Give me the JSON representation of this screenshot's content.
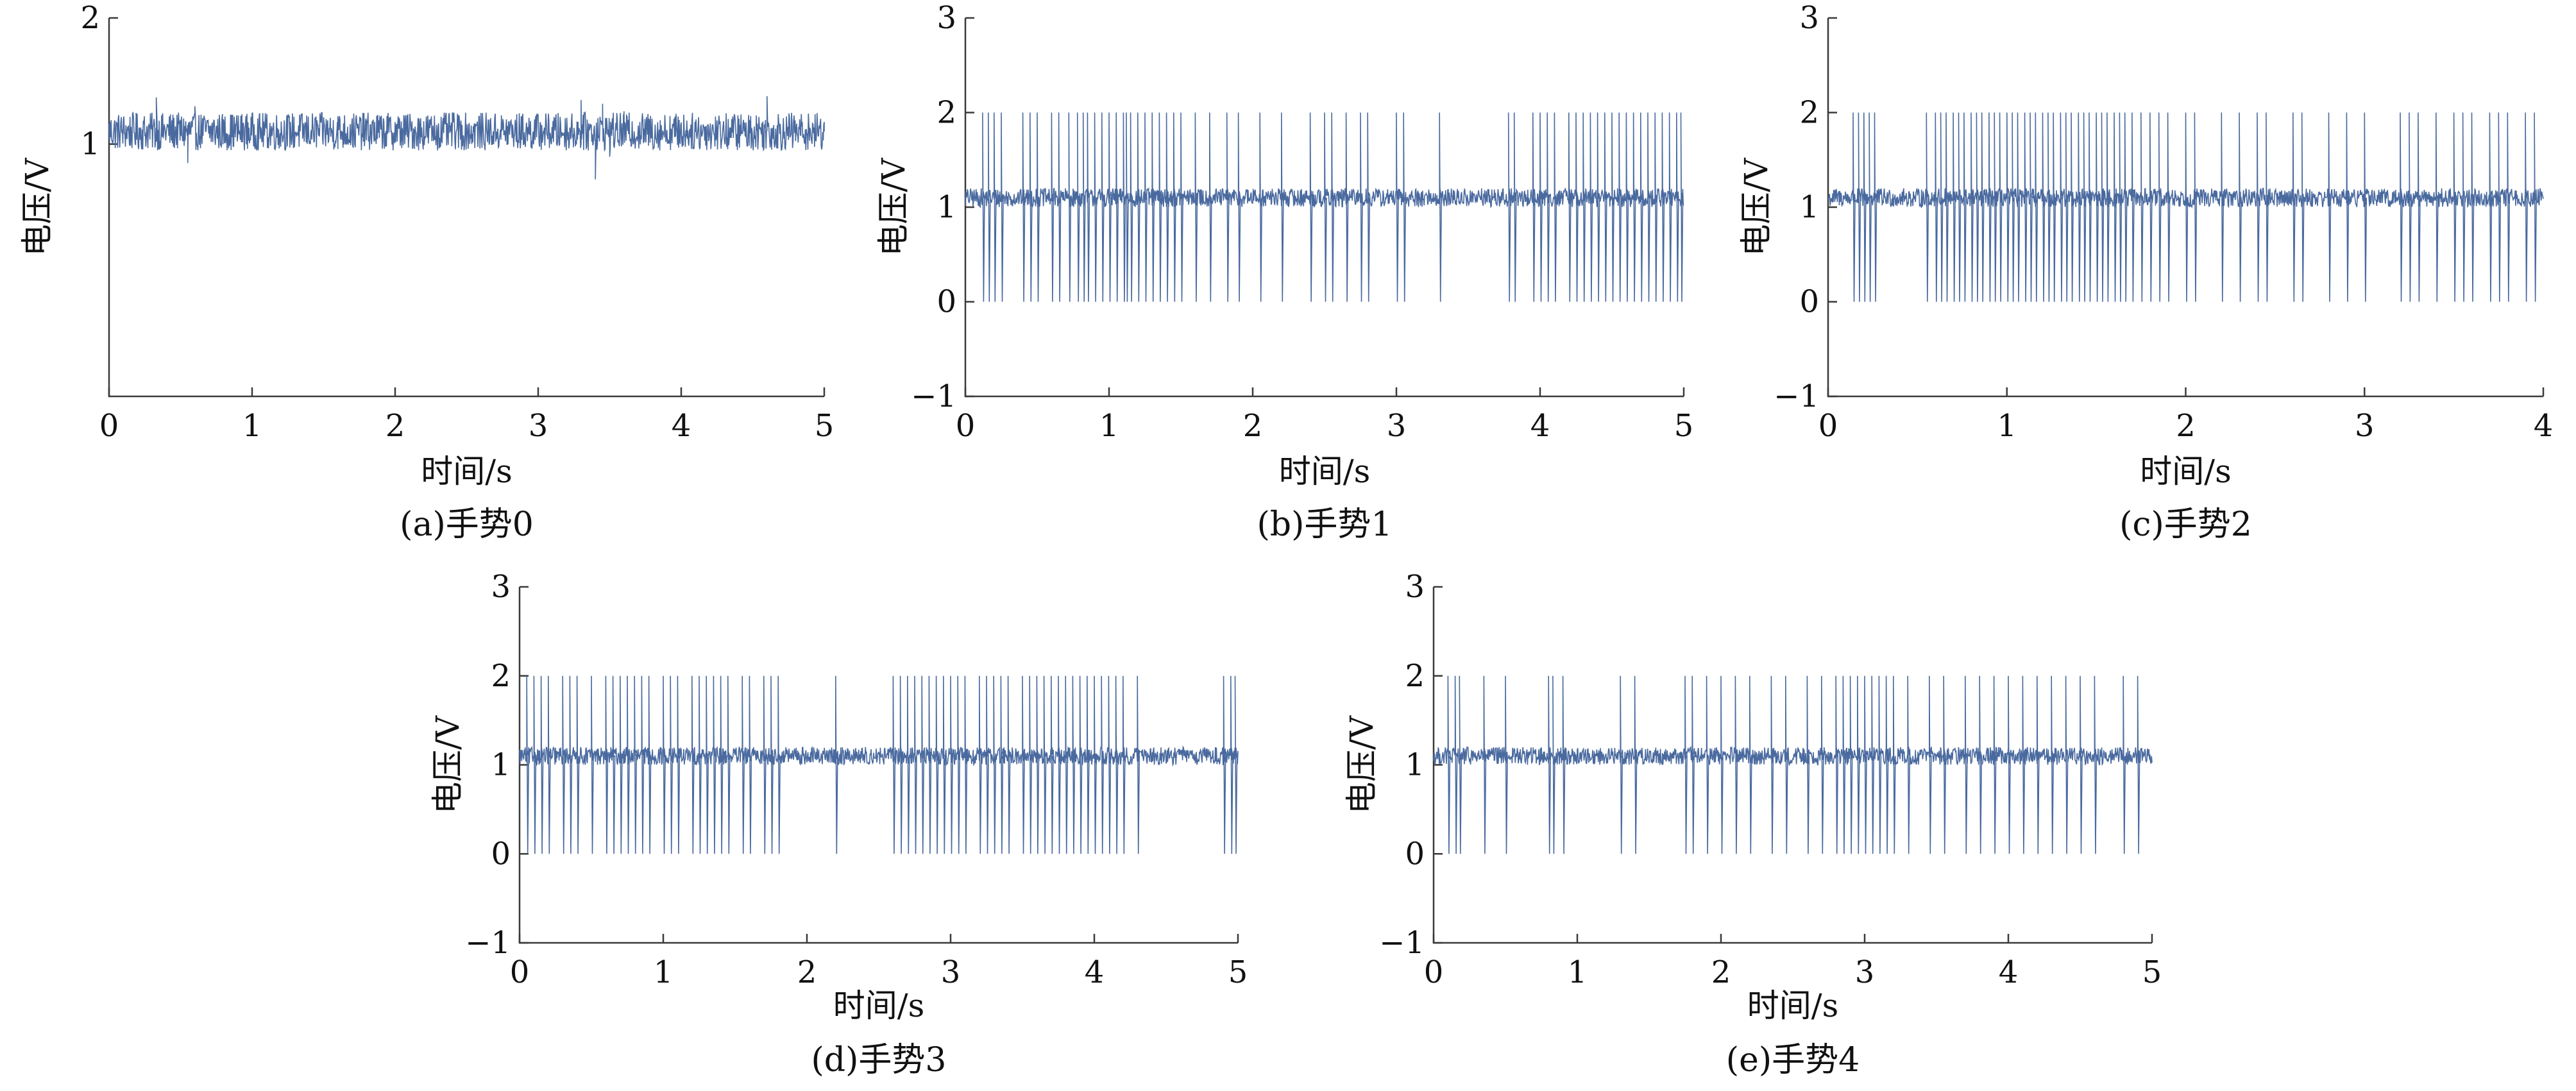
{
  "figure": {
    "line_color": "#4a6a9f"
  },
  "chart_data": [
    {
      "id": "a",
      "type": "line",
      "caption": "(a)手势0",
      "xlabel": "时间/s",
      "ylabel": "电压/V",
      "xlim": [
        0,
        5
      ],
      "ylim": [
        -1,
        2
      ],
      "xticks": [
        0,
        1,
        2,
        3,
        4,
        5
      ],
      "yticks": [
        1,
        2
      ],
      "baseline": 1.1,
      "noise_band": [
        0.95,
        1.25
      ],
      "series": [
        {
          "x": [
            0.0,
            0.33,
            0.55,
            0.6,
            1.6,
            2.4,
            3.3,
            3.35,
            3.4,
            3.45,
            3.5,
            3.6,
            4.6,
            5.0
          ],
          "y": [
            1.1,
            1.37,
            0.85,
            1.3,
            1.22,
            1.25,
            1.35,
            0.95,
            0.72,
            1.32,
            0.9,
            1.26,
            1.38,
            1.1
          ]
        }
      ]
    },
    {
      "id": "b",
      "type": "line",
      "caption": "(b)手势1",
      "xlabel": "时间/s",
      "ylabel": "电压/V",
      "xlim": [
        0,
        5
      ],
      "ylim": [
        -1,
        3
      ],
      "xticks": [
        0,
        1,
        2,
        3,
        4,
        5
      ],
      "yticks": [
        -1,
        0,
        1,
        2,
        3
      ],
      "baseline": 1.1,
      "noise_band": [
        1.0,
        1.2
      ],
      "spike_high": 2.0,
      "spike_low": 0.0,
      "series": [
        {
          "spike_x": [
            0.12,
            0.16,
            0.2,
            0.25,
            0.4,
            0.45,
            0.5,
            0.6,
            0.65,
            0.72,
            0.78,
            0.82,
            0.85,
            0.9,
            0.95,
            1.0,
            1.05,
            1.1,
            1.12,
            1.15,
            1.2,
            1.25,
            1.3,
            1.35,
            1.4,
            1.45,
            1.5,
            1.6,
            1.7,
            1.82,
            1.9,
            2.05,
            2.2,
            2.4,
            2.5,
            2.55,
            2.65,
            2.75,
            2.8,
            3.0,
            3.05,
            3.3,
            3.78,
            3.82,
            3.95,
            4.0,
            4.05,
            4.1,
            4.2,
            4.25,
            4.3,
            4.35,
            4.4,
            4.45,
            4.5,
            4.55,
            4.6,
            4.65,
            4.7,
            4.75,
            4.8,
            4.85,
            4.9,
            4.95,
            4.98
          ]
        }
      ]
    },
    {
      "id": "c",
      "type": "line",
      "caption": "(c)手势2",
      "xlabel": "时间/s",
      "ylabel": "电压/V",
      "xlim": [
        0,
        4
      ],
      "ylim": [
        -1,
        3
      ],
      "xticks": [
        0,
        1,
        2,
        3,
        4
      ],
      "yticks": [
        -1,
        0,
        1,
        2,
        3
      ],
      "baseline": 1.1,
      "noise_band": [
        1.0,
        1.2
      ],
      "spike_high": 2.0,
      "spike_low": 0.0,
      "series": [
        {
          "spike_x": [
            0.14,
            0.17,
            0.2,
            0.23,
            0.26,
            0.55,
            0.6,
            0.63,
            0.66,
            0.7,
            0.73,
            0.76,
            0.8,
            0.83,
            0.86,
            0.9,
            0.93,
            0.96,
            1.0,
            1.03,
            1.06,
            1.1,
            1.13,
            1.16,
            1.2,
            1.23,
            1.26,
            1.3,
            1.33,
            1.36,
            1.4,
            1.43,
            1.46,
            1.5,
            1.53,
            1.56,
            1.6,
            1.63,
            1.66,
            1.7,
            1.75,
            1.8,
            1.85,
            1.9,
            2.0,
            2.05,
            2.2,
            2.3,
            2.4,
            2.45,
            2.6,
            2.65,
            2.8,
            2.9,
            3.0,
            3.2,
            3.25,
            3.3,
            3.4,
            3.5,
            3.55,
            3.6,
            3.7,
            3.75,
            3.8,
            3.9,
            3.95
          ]
        }
      ]
    },
    {
      "id": "d",
      "type": "line",
      "caption": "(d)手势3",
      "xlabel": "时间/s",
      "ylabel": "电压/V",
      "xlim": [
        0,
        5
      ],
      "ylim": [
        -1,
        3
      ],
      "xticks": [
        0,
        1,
        2,
        3,
        4,
        5
      ],
      "yticks": [
        -1,
        0,
        1,
        2,
        3
      ],
      "baseline": 1.1,
      "noise_band": [
        1.0,
        1.2
      ],
      "spike_high": 2.0,
      "spike_low": 0.0,
      "series": [
        {
          "spike_x": [
            0.05,
            0.1,
            0.15,
            0.2,
            0.3,
            0.35,
            0.4,
            0.5,
            0.6,
            0.65,
            0.7,
            0.75,
            0.8,
            0.85,
            0.9,
            1.0,
            1.05,
            1.1,
            1.2,
            1.25,
            1.3,
            1.35,
            1.4,
            1.45,
            1.55,
            1.6,
            1.7,
            1.75,
            1.8,
            2.2,
            2.6,
            2.65,
            2.7,
            2.75,
            2.8,
            2.85,
            2.9,
            2.95,
            3.0,
            3.05,
            3.1,
            3.2,
            3.25,
            3.3,
            3.35,
            3.4,
            3.5,
            3.55,
            3.6,
            3.65,
            3.7,
            3.75,
            3.8,
            3.85,
            3.9,
            3.95,
            4.0,
            4.05,
            4.1,
            4.15,
            4.2,
            4.3,
            4.9,
            4.95,
            4.98
          ]
        }
      ]
    },
    {
      "id": "e",
      "type": "line",
      "caption": "(e)手势4",
      "xlabel": "时间/s",
      "ylabel": "电压/V",
      "xlim": [
        0,
        5
      ],
      "ylim": [
        -1,
        3
      ],
      "xticks": [
        0,
        1,
        2,
        3,
        4,
        5
      ],
      "yticks": [
        -1,
        0,
        1,
        2,
        3
      ],
      "baseline": 1.1,
      "noise_band": [
        1.0,
        1.2
      ],
      "spike_high": 2.0,
      "spike_low": 0.0,
      "series": [
        {
          "spike_x": [
            0.1,
            0.15,
            0.18,
            0.35,
            0.5,
            0.8,
            0.83,
            0.9,
            1.3,
            1.4,
            1.75,
            1.8,
            1.9,
            2.0,
            2.1,
            2.2,
            2.35,
            2.45,
            2.6,
            2.7,
            2.8,
            2.85,
            2.9,
            2.95,
            3.0,
            3.05,
            3.1,
            3.15,
            3.2,
            3.3,
            3.45,
            3.55,
            3.7,
            3.8,
            3.9,
            4.0,
            4.1,
            4.2,
            4.3,
            4.4,
            4.5,
            4.6,
            4.8,
            4.9
          ]
        }
      ]
    }
  ]
}
